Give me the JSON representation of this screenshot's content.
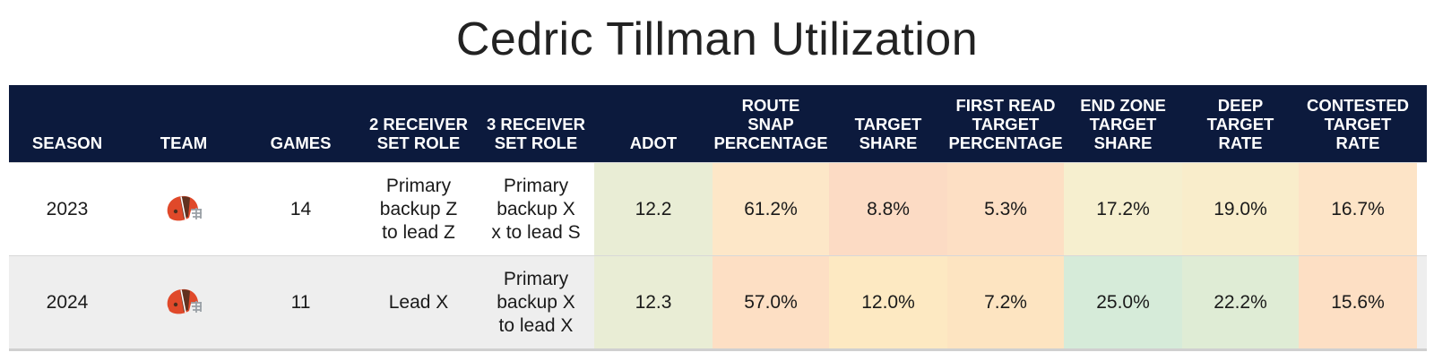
{
  "title": "Cedric Tillman Utilization",
  "headers": [
    "SEASON",
    "TEAM",
    "GAMES",
    "2 RECEIVER SET ROLE",
    "3 RECEIVER SET ROLE",
    "ADOT",
    "ROUTE SNAP PERCENTAGE",
    "TARGET SHARE",
    "FIRST READ TARGET PERCENTAGE",
    "END ZONE TARGET SHARE",
    "DEEP TARGET RATE",
    "CONTESTED TARGET RATE"
  ],
  "header_lines": [
    [
      "SEASON"
    ],
    [
      "TEAM"
    ],
    [
      "GAMES"
    ],
    [
      "2 RECEIVER",
      "SET ROLE"
    ],
    [
      "3 RECEIVER",
      "SET ROLE"
    ],
    [
      "ADOT"
    ],
    [
      "ROUTE",
      "SNAP",
      "PERCENTAGE"
    ],
    [
      "TARGET",
      "SHARE"
    ],
    [
      "FIRST READ",
      "TARGET",
      "PERCENTAGE"
    ],
    [
      "END ZONE",
      "TARGET",
      "SHARE"
    ],
    [
      "DEEP",
      "TARGET",
      "RATE"
    ],
    [
      "CONTESTED",
      "TARGET",
      "RATE"
    ]
  ],
  "team_icon": "cleveland-browns-helmet-icon",
  "colors": {
    "header_bg": "#0c1a3d",
    "row2_bg": "#eeeeee",
    "helmet_orange": "#e0492a",
    "helmet_brown": "#4b2e1e"
  },
  "rows": [
    {
      "season": "2023",
      "games": "14",
      "role2": [
        "Primary",
        "backup Z",
        "to lead Z"
      ],
      "role3": [
        "Primary",
        "backup X",
        "x to lead S"
      ],
      "adot": "12.2",
      "route_snap": "61.2%",
      "target_share": "8.8%",
      "first_read": "5.3%",
      "end_zone": "17.2%",
      "deep": "19.0%",
      "contested": "16.7%",
      "cell_colors": [
        "#e9edd5",
        "#fde7c8",
        "#fcdbc4",
        "#fddfc4",
        "#f6efcf",
        "#f9edcb",
        "#fde4c7"
      ]
    },
    {
      "season": "2024",
      "games": "11",
      "role2": [
        "Lead X"
      ],
      "role3": [
        "Primary",
        "backup X",
        "to lead X"
      ],
      "adot": "12.3",
      "route_snap": "57.0%",
      "target_share": "12.0%",
      "first_read": "7.2%",
      "end_zone": "25.0%",
      "deep": "22.2%",
      "contested": "15.6%",
      "cell_colors": [
        "#e9edd5",
        "#fddfc4",
        "#fde9c2",
        "#fde4c1",
        "#d6ebd9",
        "#dfecd5",
        "#fddfc4"
      ]
    }
  ]
}
